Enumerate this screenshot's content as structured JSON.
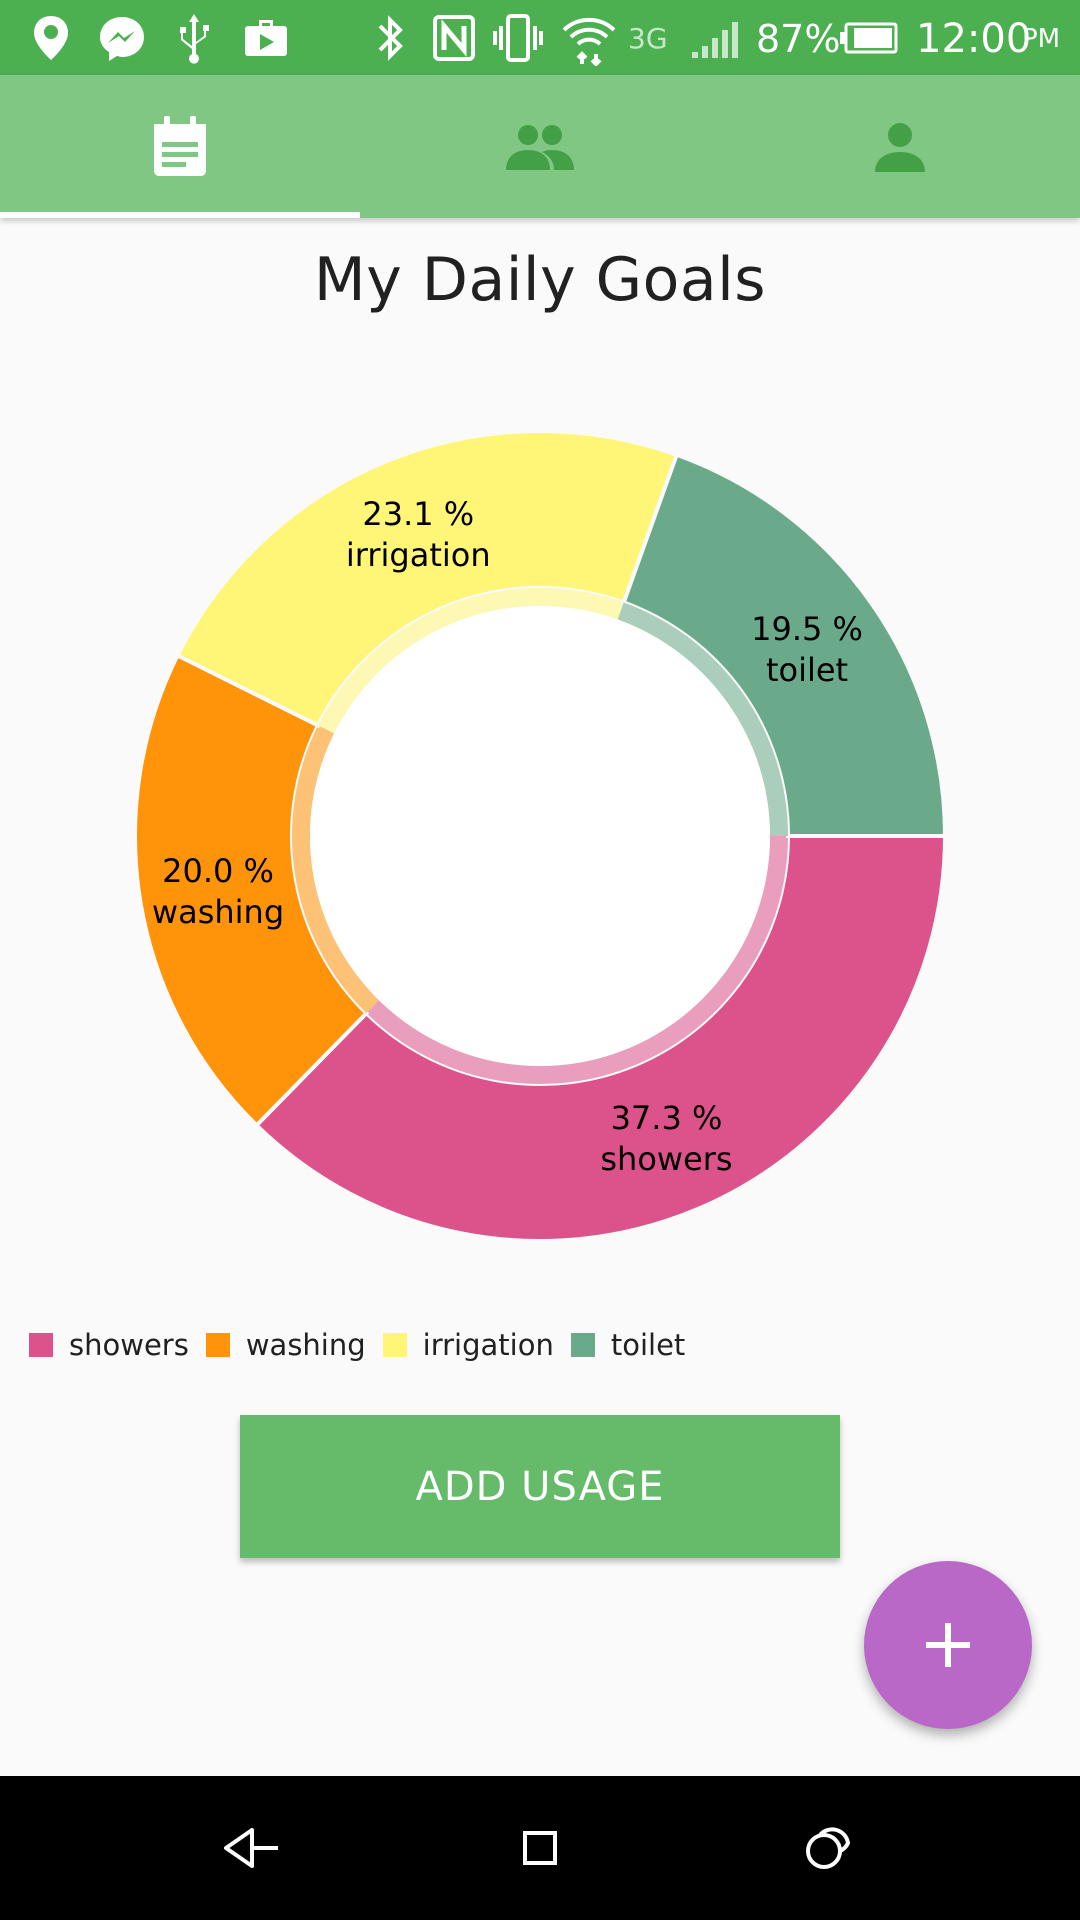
{
  "status_bar": {
    "battery_percent": "87%",
    "network": "3G",
    "time": "12:00",
    "ampm": "PM",
    "icons": [
      "location-icon",
      "messenger-icon",
      "usb-icon",
      "briefcase-icon",
      "bluetooth-icon",
      "nfc-icon",
      "vibrate-icon",
      "wifi-icon",
      "signal-icon",
      "battery-icon"
    ]
  },
  "tabs": [
    {
      "icon": "calendar-icon",
      "selected": true
    },
    {
      "icon": "people-icon",
      "selected": false
    },
    {
      "icon": "person-icon",
      "selected": false
    }
  ],
  "page": {
    "title": "My Daily Goals"
  },
  "chart_data": {
    "type": "pie",
    "donut": true,
    "series": [
      {
        "name": "showers",
        "value": 37.3,
        "label": "37.3 %",
        "color": "#dc528a"
      },
      {
        "name": "washing",
        "value": 20.0,
        "label": "20.0 %",
        "color": "#ff940a"
      },
      {
        "name": "irrigation",
        "value": 23.1,
        "label": "23.1 %",
        "color": "#fff678"
      },
      {
        "name": "toilet",
        "value": 19.5,
        "label": "19.5 %",
        "color": "#6aa989"
      }
    ],
    "legend_position": "bottom-left"
  },
  "actions": {
    "add_usage_label": "ADD USAGE",
    "fab_icon": "plus-icon"
  },
  "colors": {
    "status_bar": "#4caf50",
    "tab_bar": "#81c784",
    "tab_icon": "#43a047",
    "button": "#66bb6a",
    "fab": "#ba68c8"
  },
  "nav_bar": {
    "icons": [
      "back-icon",
      "home-icon",
      "recents-icon"
    ]
  }
}
